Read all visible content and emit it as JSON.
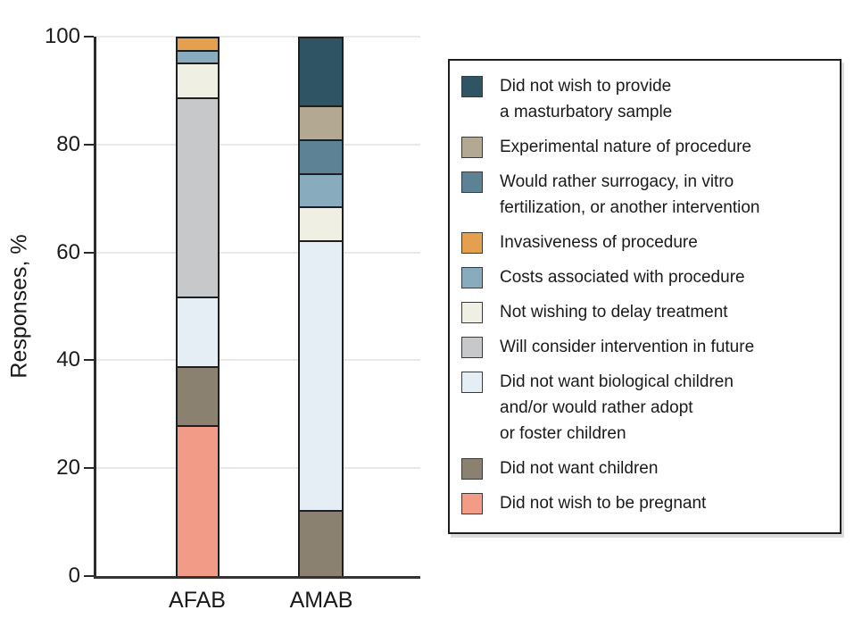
{
  "figure": {
    "background": "#ffffff",
    "text_color": "#1a1a1a",
    "axis_color": "#2a2a2a",
    "gridline_color": "#e8e8e8",
    "segment_border_color": "#1f1f1f"
  },
  "y_axis": {
    "title": "Responses, %",
    "ticks": [
      0,
      20,
      40,
      60,
      80,
      100
    ]
  },
  "x_axis": {
    "categories": [
      "AFAB",
      "AMAB"
    ]
  },
  "chart_data": {
    "type": "bar",
    "stacked": true,
    "orientation": "vertical",
    "ylabel": "Responses, %",
    "ylim": [
      0,
      100
    ],
    "grid": true,
    "legend_position": "right",
    "categories": [
      "AFAB",
      "AMAB"
    ],
    "series": [
      {
        "name": "Did not wish to provide a masturbatory sample",
        "label": "Did not wish to provide\na masturbatory sample",
        "color": "#2F5565",
        "values": [
          0,
          12.5
        ]
      },
      {
        "name": "Experimental nature of procedure",
        "label": "Experimental nature of procedure",
        "color": "#B3A993",
        "values": [
          0,
          6.25
        ]
      },
      {
        "name": "Would rather surrogacy, in vitro fertilization, or another intervention",
        "label": "Would rather surrogacy, in vitro\nfertilization, or another intervention",
        "color": "#5D8295",
        "values": [
          0,
          6.25
        ]
      },
      {
        "name": "Invasiveness of procedure",
        "label": "Invasiveness of procedure",
        "color": "#E4A04F",
        "values": [
          2.2,
          0
        ]
      },
      {
        "name": "Costs associated with procedure",
        "label": "Costs associated with procedure",
        "color": "#88ABBE",
        "values": [
          2.2,
          6.25
        ]
      },
      {
        "name": "Not wishing to delay treatment",
        "label": "Not wishing to delay treatment",
        "color": "#F0EFE3",
        "values": [
          6.5,
          6.25
        ]
      },
      {
        "name": "Will consider intervention in future",
        "label": "Will consider intervention in future",
        "color": "#C7C8CA",
        "values": [
          37.0,
          0
        ]
      },
      {
        "name": "Did not want biological children and/or would rather adopt or foster children",
        "label": "Did not want biological children\nand/or would rather adopt\nor foster children",
        "color": "#E5EEF4",
        "values": [
          13.0,
          50
        ]
      },
      {
        "name": "Did not want children",
        "label": "Did not want children",
        "color": "#8A8171",
        "values": [
          10.9,
          12.5
        ]
      },
      {
        "name": "Did not wish to be pregnant",
        "label": "Did not wish to be pregnant",
        "color": "#F29C87",
        "values": [
          28.2,
          0
        ]
      }
    ]
  }
}
